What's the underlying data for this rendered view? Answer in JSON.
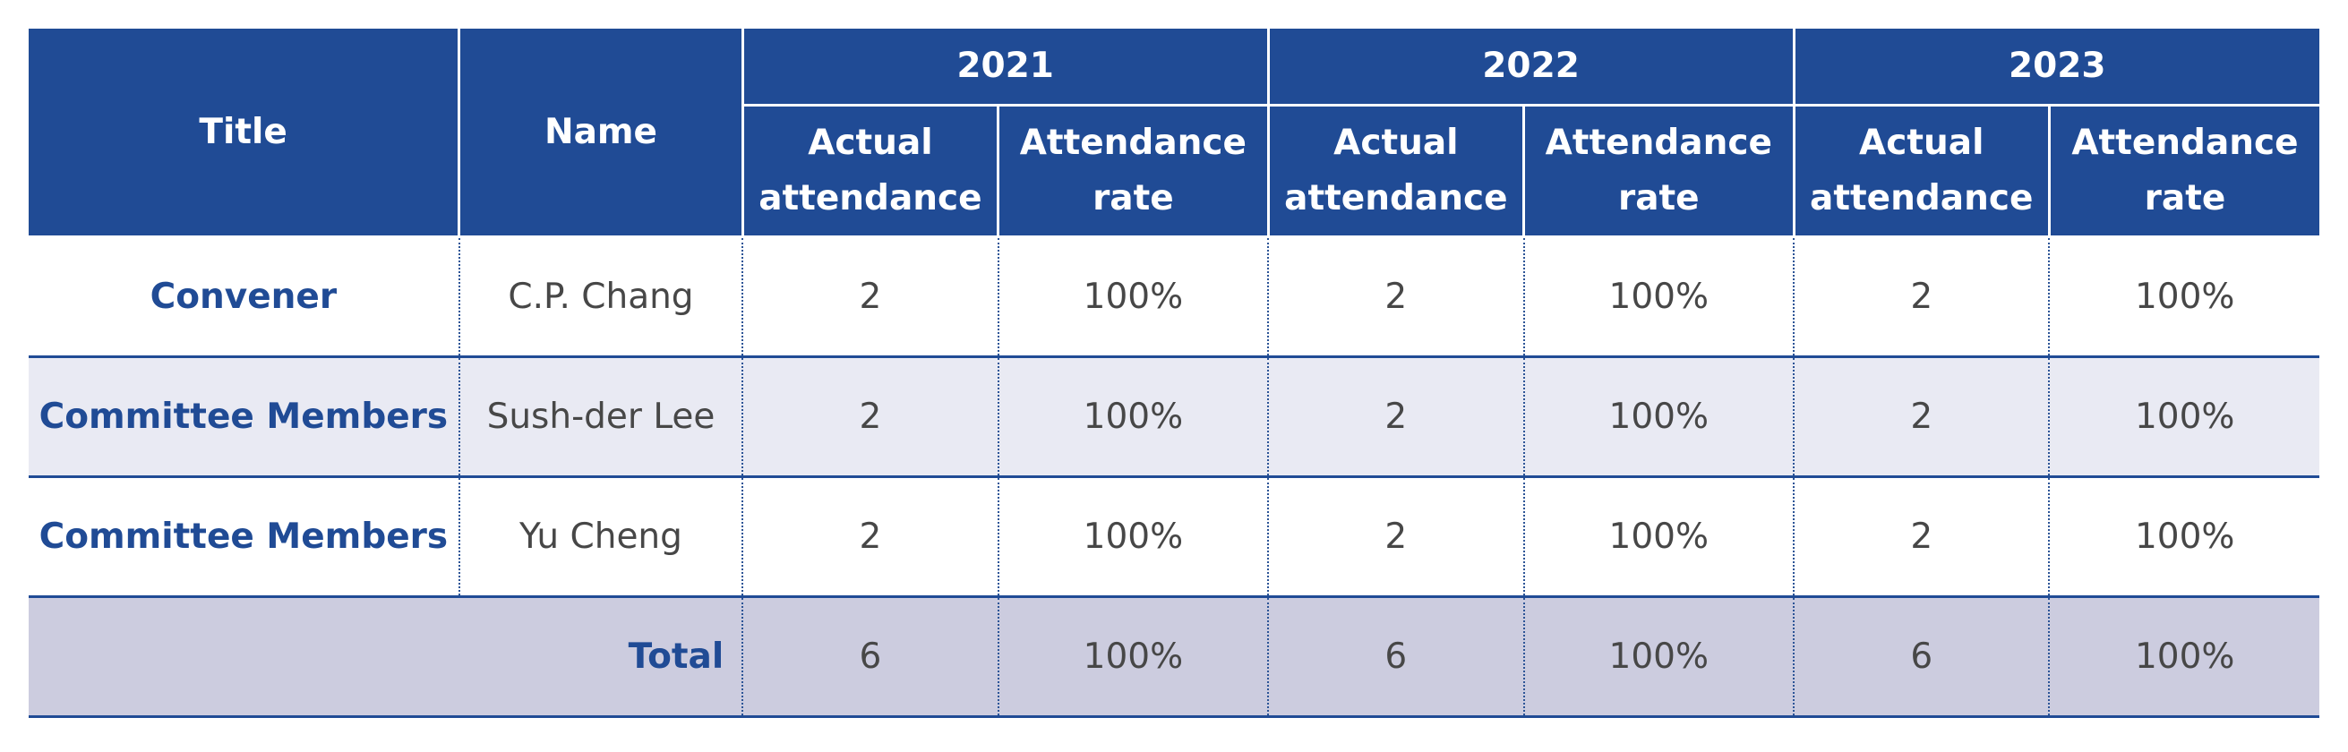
{
  "header": {
    "title": "Title",
    "name": "Name",
    "years": [
      "2021",
      "2022",
      "2023"
    ],
    "actual_attendance": "Actual attendance",
    "attendance_rate": "Attendance rate"
  },
  "rows": [
    {
      "title": "Convener",
      "name": "C.P. Chang",
      "values": [
        "2",
        "100%",
        "2",
        "100%",
        "2",
        "100%"
      ]
    },
    {
      "title": "Committee Members",
      "name": "Sush-der Lee",
      "values": [
        "2",
        "100%",
        "2",
        "100%",
        "2",
        "100%"
      ]
    },
    {
      "title": "Committee Members",
      "name": "Yu Cheng",
      "values": [
        "2",
        "100%",
        "2",
        "100%",
        "2",
        "100%"
      ]
    }
  ],
  "total": {
    "label": "Total",
    "values": [
      "6",
      "100%",
      "6",
      "100%",
      "6",
      "100%"
    ]
  },
  "colors": {
    "header_bg": "#204b95",
    "header_text": "#ffffff",
    "title_text": "#204b95",
    "body_text": "#474747",
    "alt_row_bg": "#e9eaf3",
    "total_row_bg": "#ccccdf"
  }
}
